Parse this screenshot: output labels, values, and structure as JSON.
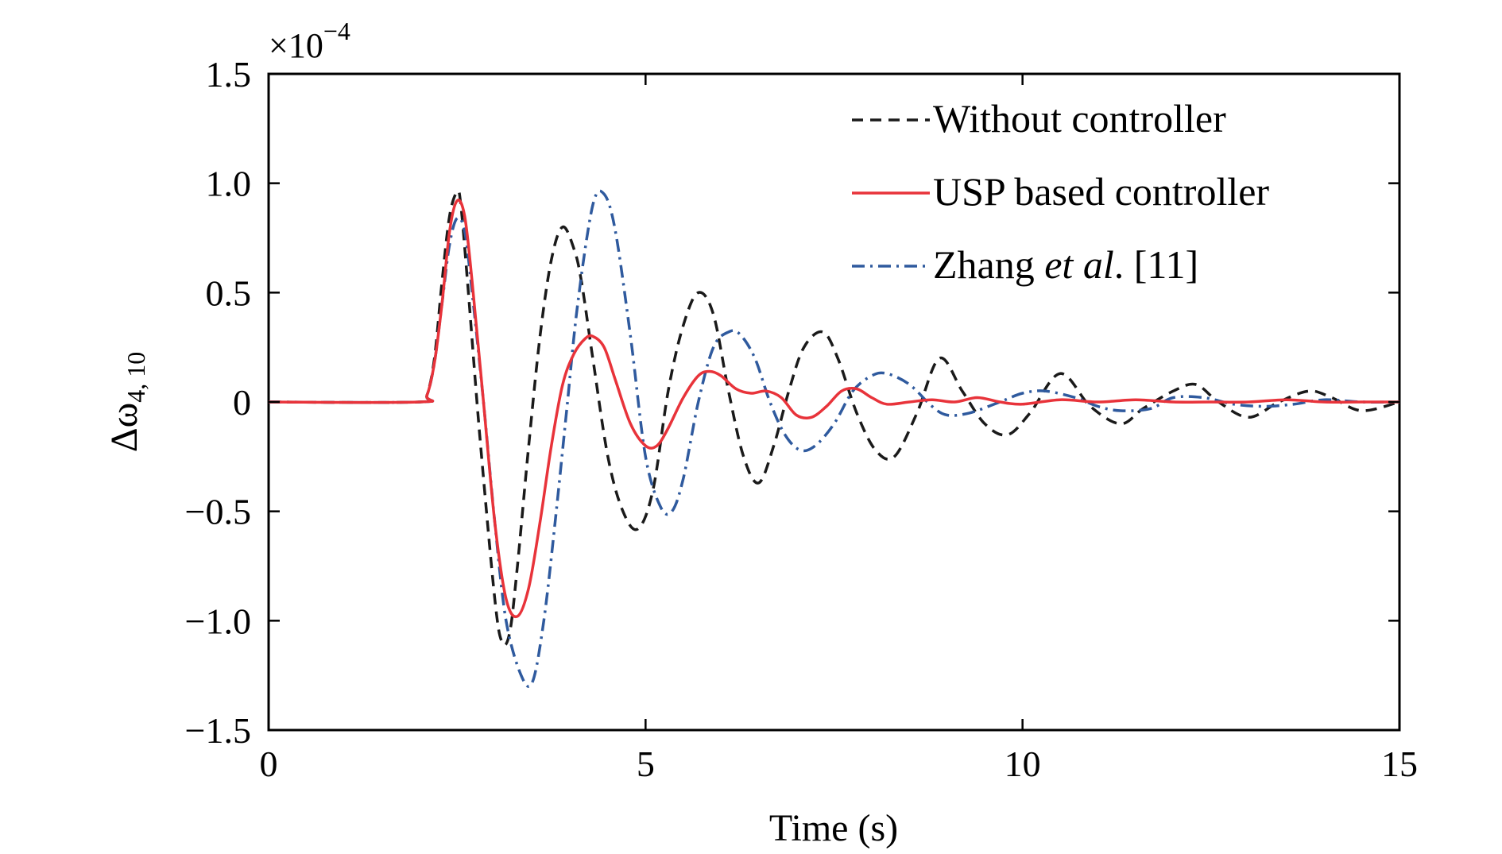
{
  "chart_data": {
    "type": "line",
    "title": "",
    "xlabel": "Time (s)",
    "ylabel": "Δω",
    "ylabel_subscript": "4, 10",
    "y_multiplier_base": "×10",
    "y_multiplier_exp": "−4",
    "xlim": [
      0,
      15
    ],
    "ylim": [
      -1.5,
      1.5
    ],
    "x_ticks": [
      0,
      5,
      10,
      15
    ],
    "x_tick_labels": [
      "0",
      "5",
      "10",
      "15"
    ],
    "y_ticks": [
      -1.5,
      -1.0,
      -0.5,
      0,
      0.5,
      1.0,
      1.5
    ],
    "y_tick_labels": [
      "−1.5",
      "−1.0",
      "−0.5",
      "0",
      "0.5",
      "1.0",
      "1.5"
    ],
    "grid": false,
    "legend_position": "top-right",
    "series": [
      {
        "name": "Without controller",
        "legend_parts": [
          {
            "text": "Without controller",
            "italic": false
          }
        ],
        "color": "#1a1a1a",
        "dash": "14,9",
        "x": [
          0,
          2.0,
          2.1,
          2.2,
          2.3,
          2.4,
          2.5,
          2.55,
          2.65,
          2.8,
          3.0,
          3.1,
          3.2,
          3.3,
          3.45,
          3.6,
          3.75,
          3.9,
          4.05,
          4.15,
          4.3,
          4.5,
          4.7,
          4.9,
          5.1,
          5.3,
          5.5,
          5.7,
          5.9,
          6.1,
          6.3,
          6.5,
          6.7,
          6.9,
          7.1,
          7.35,
          7.55,
          7.8,
          8.05,
          8.3,
          8.6,
          8.9,
          9.2,
          9.5,
          9.8,
          10.1,
          10.5,
          10.9,
          11.3,
          11.6,
          12.0,
          12.3,
          12.6,
          13.0,
          13.4,
          13.8,
          14.1,
          14.5,
          15.0
        ],
        "y": [
          0,
          0,
          0.03,
          0.2,
          0.55,
          0.85,
          0.96,
          0.9,
          0.5,
          -0.15,
          -0.9,
          -1.1,
          -1.05,
          -0.75,
          -0.2,
          0.3,
          0.65,
          0.8,
          0.7,
          0.55,
          0.2,
          -0.25,
          -0.5,
          -0.58,
          -0.4,
          0.05,
          0.35,
          0.5,
          0.4,
          0.05,
          -0.25,
          -0.37,
          -0.2,
          0.05,
          0.25,
          0.32,
          0.2,
          -0.05,
          -0.22,
          -0.25,
          -0.05,
          0.2,
          0.05,
          -0.1,
          -0.15,
          -0.05,
          0.13,
          -0.02,
          -0.1,
          -0.03,
          0.05,
          0.08,
          0.0,
          -0.07,
          0.0,
          0.05,
          0.02,
          -0.04,
          0.0
        ]
      },
      {
        "name": "USP based controller",
        "legend_parts": [
          {
            "text": "USP based controller",
            "italic": false
          }
        ],
        "color": "#e8333a",
        "dash": "",
        "x": [
          0,
          2.0,
          2.1,
          2.2,
          2.3,
          2.4,
          2.5,
          2.6,
          2.7,
          2.85,
          3.0,
          3.15,
          3.3,
          3.45,
          3.6,
          3.75,
          3.9,
          4.05,
          4.2,
          4.3,
          4.45,
          4.6,
          4.8,
          5.0,
          5.15,
          5.3,
          5.5,
          5.7,
          5.85,
          6.0,
          6.2,
          6.4,
          6.6,
          6.8,
          7.0,
          7.2,
          7.4,
          7.6,
          7.8,
          8.0,
          8.2,
          8.5,
          8.8,
          9.1,
          9.4,
          9.7,
          10.0,
          10.5,
          11.0,
          11.5,
          12.0,
          12.5,
          13.0,
          13.5,
          14.0,
          14.5,
          15.0
        ],
        "y": [
          0,
          0,
          0.03,
          0.18,
          0.45,
          0.78,
          0.92,
          0.85,
          0.55,
          0.0,
          -0.55,
          -0.9,
          -0.98,
          -0.85,
          -0.55,
          -0.2,
          0.08,
          0.22,
          0.29,
          0.3,
          0.25,
          0.1,
          -0.1,
          -0.2,
          -0.2,
          -0.12,
          0.02,
          0.12,
          0.14,
          0.12,
          0.06,
          0.04,
          0.05,
          0.02,
          -0.06,
          -0.07,
          -0.02,
          0.05,
          0.06,
          0.02,
          -0.01,
          0.0,
          0.01,
          0.0,
          0.02,
          0.0,
          -0.01,
          0.01,
          0.0,
          0.01,
          0.0,
          0.0,
          0.0,
          0.01,
          0.0,
          0.0,
          0.0
        ]
      },
      {
        "name": "Zhang et al. [11]",
        "legend_parts": [
          {
            "text": "Zhang ",
            "italic": false
          },
          {
            "text": "et al",
            "italic": true
          },
          {
            "text": ". [11]",
            "italic": false
          }
        ],
        "color": "#2f5a9e",
        "dash": "16,7,3,7",
        "x": [
          0,
          2.0,
          2.1,
          2.2,
          2.3,
          2.4,
          2.5,
          2.6,
          2.7,
          2.85,
          3.0,
          3.15,
          3.35,
          3.5,
          3.65,
          3.8,
          3.95,
          4.1,
          4.3,
          4.45,
          4.6,
          4.8,
          5.0,
          5.2,
          5.35,
          5.5,
          5.7,
          5.9,
          6.1,
          6.25,
          6.45,
          6.65,
          6.85,
          7.05,
          7.25,
          7.5,
          7.75,
          8.0,
          8.2,
          8.5,
          8.8,
          9.0,
          9.3,
          9.7,
          10.0,
          10.3,
          10.7,
          11.0,
          11.3,
          11.7,
          12.0,
          12.4,
          12.8,
          13.2,
          13.6,
          14.0,
          14.5,
          15.0
        ],
        "y": [
          0,
          0,
          0.03,
          0.18,
          0.45,
          0.72,
          0.84,
          0.78,
          0.5,
          0.0,
          -0.55,
          -1.0,
          -1.25,
          -1.28,
          -1.0,
          -0.55,
          -0.05,
          0.45,
          0.9,
          0.95,
          0.78,
          0.3,
          -0.25,
          -0.48,
          -0.5,
          -0.35,
          0.0,
          0.25,
          0.32,
          0.31,
          0.2,
          0.0,
          -0.15,
          -0.22,
          -0.2,
          -0.1,
          0.05,
          0.12,
          0.13,
          0.08,
          -0.02,
          -0.06,
          -0.05,
          0.0,
          0.04,
          0.05,
          0.02,
          -0.02,
          -0.04,
          -0.03,
          0.02,
          0.02,
          -0.01,
          -0.02,
          -0.01,
          0.01,
          0.0,
          0.0
        ]
      }
    ]
  }
}
